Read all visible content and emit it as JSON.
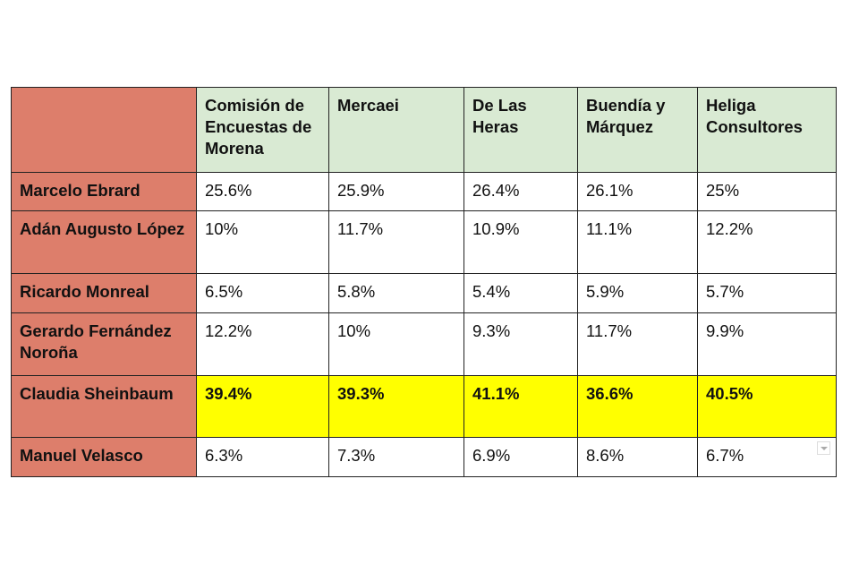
{
  "table": {
    "header": [
      "Comisión de Encuestas de Morena",
      "Mercaei",
      "De Las Heras",
      "Buendía y Márquez",
      "Heliga Consultores"
    ],
    "rows": [
      {
        "label": "Marcelo Ebrard",
        "values": [
          "25.6%",
          "25.9%",
          "26.4%",
          "26.1%",
          "25%"
        ]
      },
      {
        "label": "Adán Augusto López",
        "values": [
          "10%",
          "11.7%",
          "10.9%",
          "11.1%",
          "12.2%"
        ]
      },
      {
        "label": "Ricardo Monreal",
        "values": [
          "6.5%",
          "5.8%",
          "5.4%",
          "5.9%",
          "5.7%"
        ]
      },
      {
        "label": "Gerardo Fernández Noroña",
        "values": [
          "12.2%",
          "10%",
          "9.3%",
          "11.7%",
          "9.9%"
        ]
      },
      {
        "label": "Claudia Sheinbaum",
        "values": [
          "39.4%",
          "39.3%",
          "41.1%",
          "36.6%",
          "40.5%"
        ]
      },
      {
        "label": "Manuel Velasco",
        "values": [
          "6.3%",
          "7.3%",
          "6.9%",
          "8.6%",
          "6.7%"
        ]
      }
    ]
  }
}
